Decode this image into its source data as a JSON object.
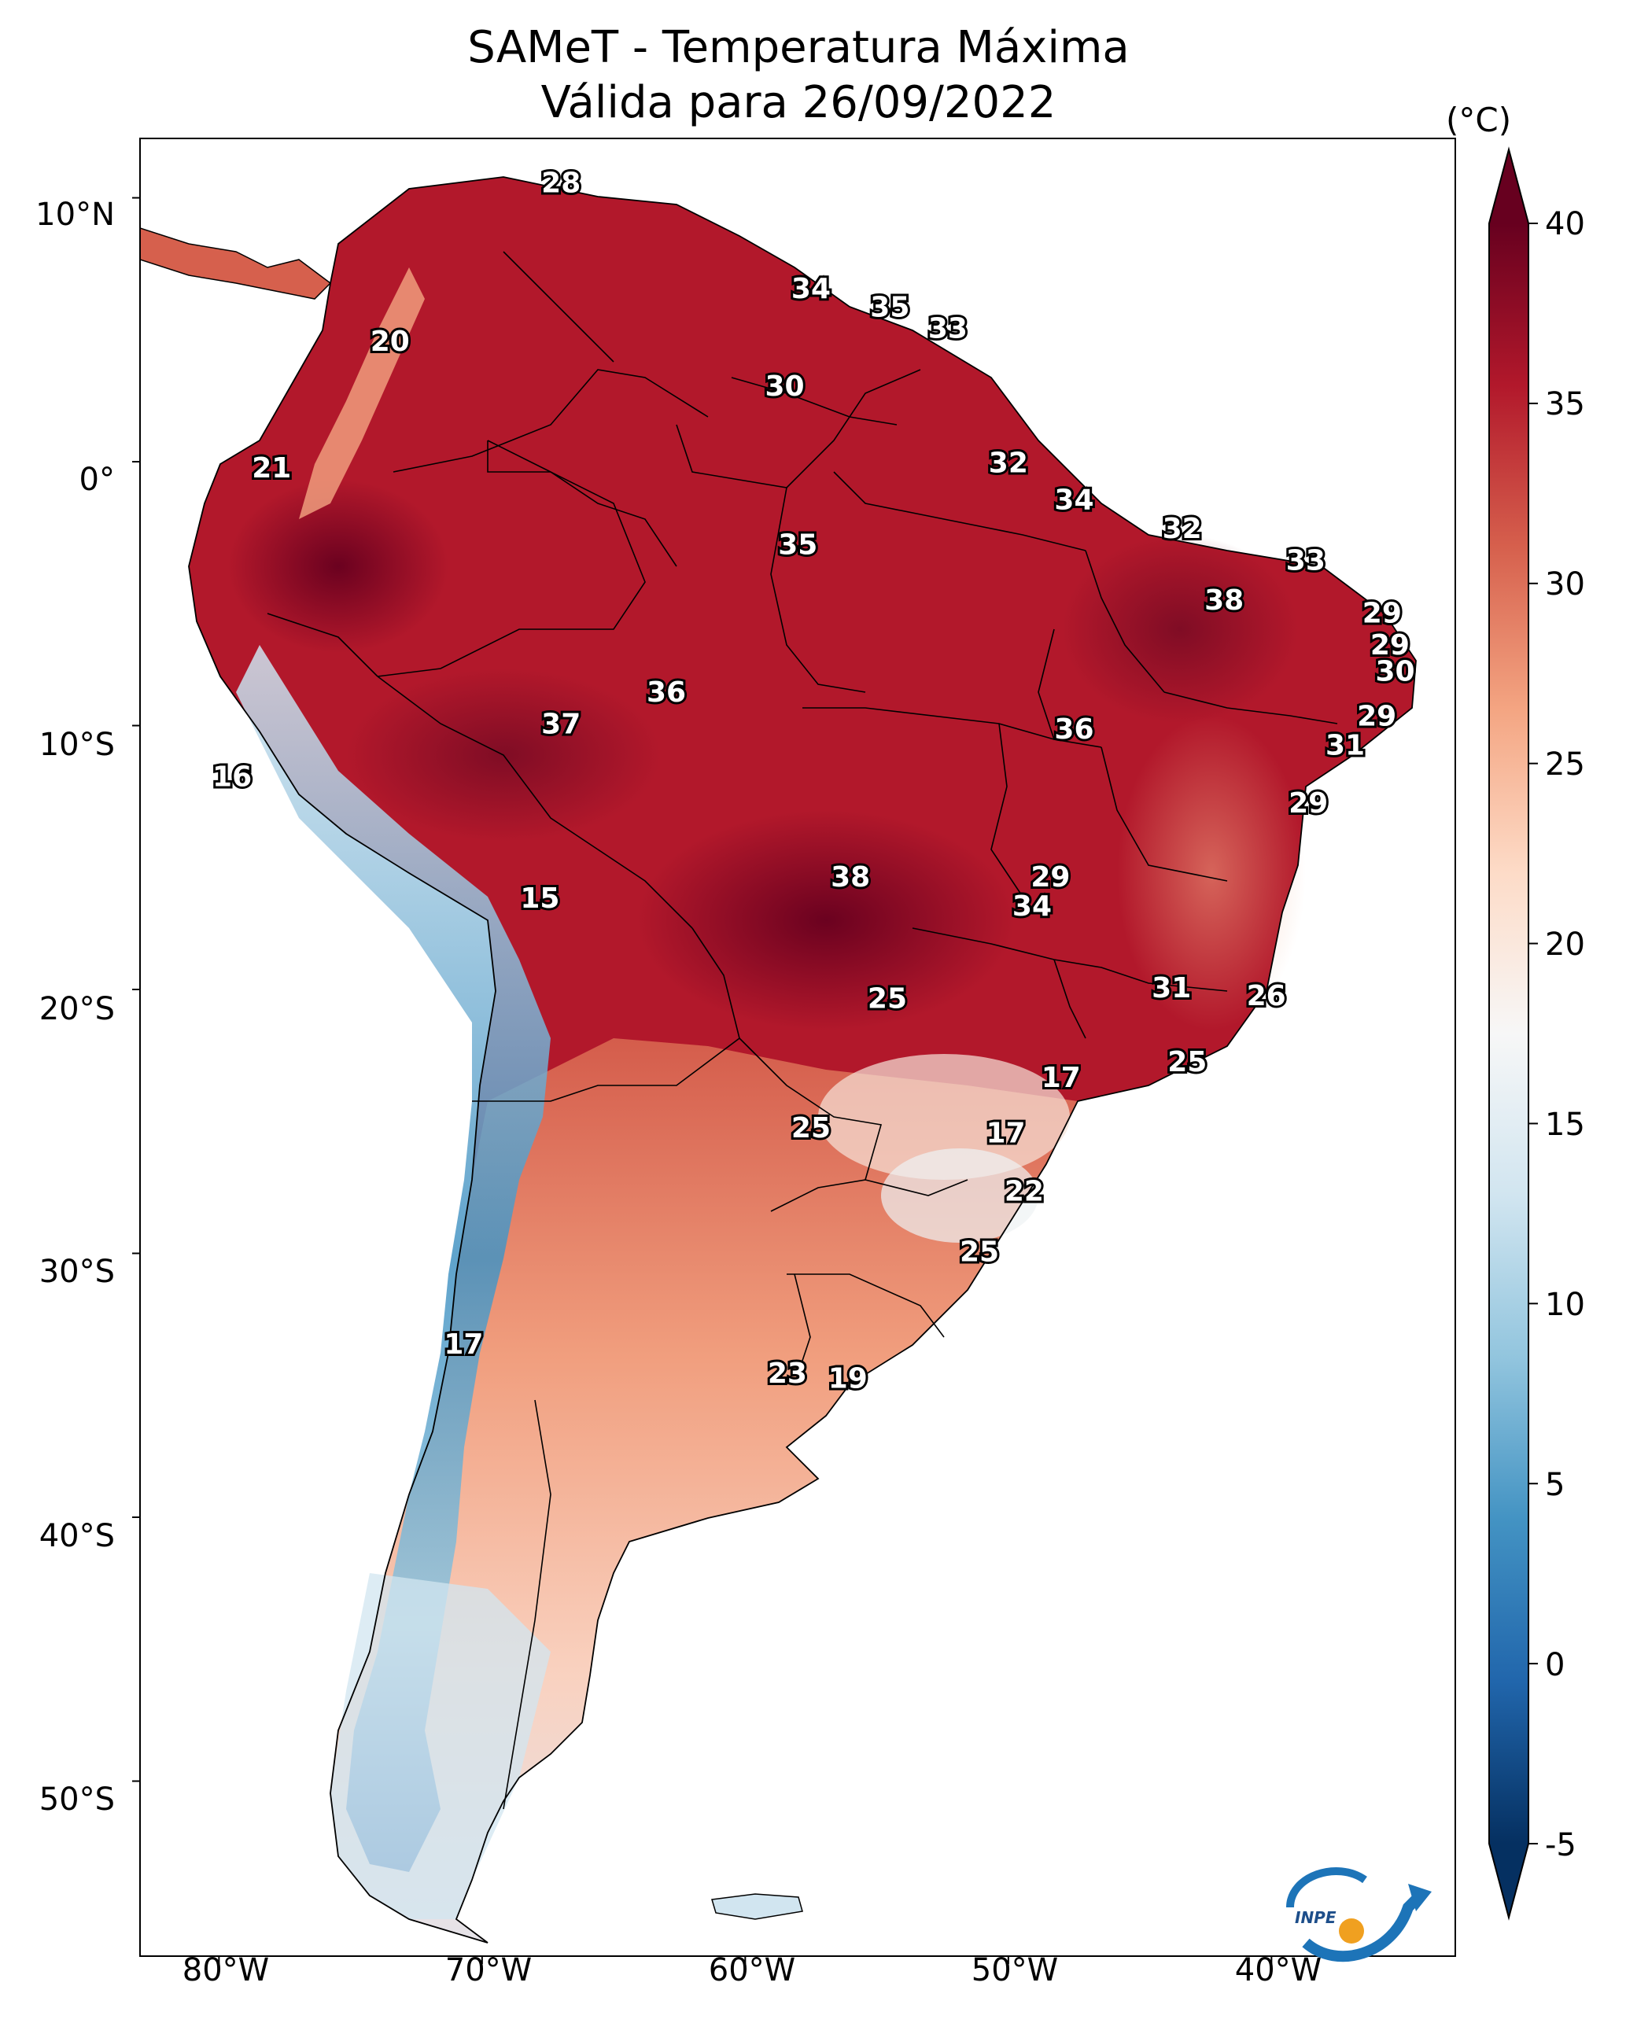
{
  "title": {
    "line1": "SAMeT - Temperatura Máxima",
    "line2": "Válida para 26/09/2022"
  },
  "axes": {
    "lat_labels": [
      "10°N",
      "0°",
      "10°S",
      "20°S",
      "30°S",
      "40°S",
      "50°S"
    ],
    "lon_labels": [
      "80°W",
      "70°W",
      "60°W",
      "50°W",
      "40°W"
    ]
  },
  "colorbar": {
    "unit": "(°C)",
    "ticks": [
      "40",
      "35",
      "30",
      "25",
      "20",
      "15",
      "10",
      "5",
      "0",
      "-5"
    ],
    "range": [
      -5,
      40
    ],
    "colors": [
      "#053061",
      "#2166ac",
      "#4393c3",
      "#92c5de",
      "#d1e5f0",
      "#f7f7f7",
      "#fddbc7",
      "#f4a582",
      "#d6604d",
      "#b2182b",
      "#67001f"
    ]
  },
  "map_labels": [
    {
      "value": "28",
      "lat": 10.5,
      "lon": -67.0
    },
    {
      "value": "20",
      "lat": 4.5,
      "lon": -73.5
    },
    {
      "value": "21",
      "lat": -0.3,
      "lon": -78.0
    },
    {
      "value": "34",
      "lat": 6.5,
      "lon": -57.5
    },
    {
      "value": "35",
      "lat": 5.8,
      "lon": -54.5
    },
    {
      "value": "33",
      "lat": 5.0,
      "lon": -52.3
    },
    {
      "value": "30",
      "lat": 2.8,
      "lon": -58.5
    },
    {
      "value": "32",
      "lat": -0.1,
      "lon": -50.0
    },
    {
      "value": "34",
      "lat": -1.5,
      "lon": -47.5
    },
    {
      "value": "32",
      "lat": -2.6,
      "lon": -43.4
    },
    {
      "value": "33",
      "lat": -3.8,
      "lon": -38.7
    },
    {
      "value": "35",
      "lat": -3.2,
      "lon": -58.0
    },
    {
      "value": "38",
      "lat": -5.3,
      "lon": -41.8
    },
    {
      "value": "29",
      "lat": -5.8,
      "lon": -35.8
    },
    {
      "value": "29",
      "lat": -7.0,
      "lon": -35.5
    },
    {
      "value": "30",
      "lat": -8.0,
      "lon": -35.3
    },
    {
      "value": "36",
      "lat": -8.8,
      "lon": -63.0
    },
    {
      "value": "37",
      "lat": -10.0,
      "lon": -67.0
    },
    {
      "value": "36",
      "lat": -10.2,
      "lon": -47.5
    },
    {
      "value": "29",
      "lat": -9.7,
      "lon": -36.0
    },
    {
      "value": "31",
      "lat": -10.8,
      "lon": -37.2
    },
    {
      "value": "16",
      "lat": -12.0,
      "lon": -79.5
    },
    {
      "value": "29",
      "lat": -13.0,
      "lon": -38.6
    },
    {
      "value": "38",
      "lat": -15.8,
      "lon": -56.0
    },
    {
      "value": "29",
      "lat": -15.8,
      "lon": -48.4
    },
    {
      "value": "34",
      "lat": -16.9,
      "lon": -49.1
    },
    {
      "value": "15",
      "lat": -16.6,
      "lon": -67.8
    },
    {
      "value": "31",
      "lat": -20.0,
      "lon": -43.8
    },
    {
      "value": "26",
      "lat": -20.3,
      "lon": -40.2
    },
    {
      "value": "25",
      "lat": -20.4,
      "lon": -54.6
    },
    {
      "value": "25",
      "lat": -22.8,
      "lon": -43.2
    },
    {
      "value": "17",
      "lat": -23.4,
      "lon": -48.0
    },
    {
      "value": "25",
      "lat": -25.3,
      "lon": -57.5
    },
    {
      "value": "17",
      "lat": -25.5,
      "lon": -50.1
    },
    {
      "value": "22",
      "lat": -27.7,
      "lon": -49.4
    },
    {
      "value": "25",
      "lat": -30.0,
      "lon": -51.1
    },
    {
      "value": "17",
      "lat": -33.5,
      "lon": -70.7
    },
    {
      "value": "23",
      "lat": -34.6,
      "lon": -58.4
    },
    {
      "value": "19",
      "lat": -34.8,
      "lon": -56.1
    }
  ],
  "logo": {
    "text": "INPE"
  }
}
